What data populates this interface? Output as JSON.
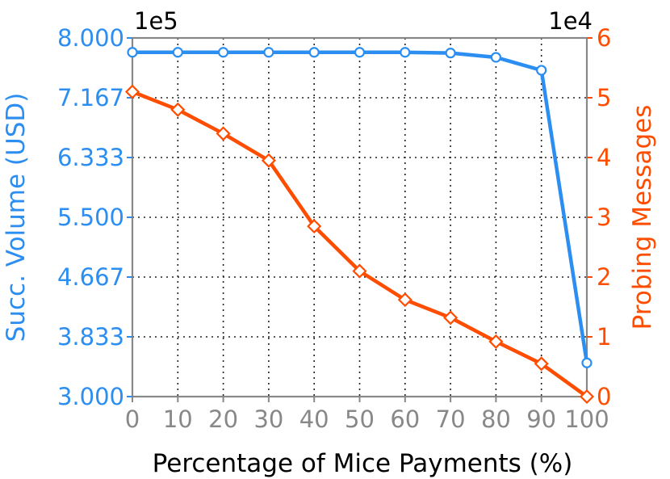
{
  "chart_data": {
    "type": "line",
    "xlabel": "Percentage of Mice Payments (%)",
    "x": [
      0,
      10,
      20,
      30,
      40,
      50,
      60,
      70,
      80,
      90,
      100
    ],
    "xlim": [
      0,
      100
    ],
    "xticks": [
      "0",
      "10",
      "20",
      "30",
      "40",
      "50",
      "60",
      "70",
      "80",
      "90",
      "100"
    ],
    "left_axis": {
      "label": "Succ. Volume (USD)",
      "multiplier": "1e5",
      "ylim": [
        3.0,
        8.0
      ],
      "ticks": [
        "3.000",
        "3.833",
        "4.667",
        "5.500",
        "6.333",
        "7.167",
        "8.000"
      ],
      "color": "#2b8ef0"
    },
    "right_axis": {
      "label": "Probing Messages",
      "multiplier": "1e4",
      "ylim": [
        0,
        6
      ],
      "ticks": [
        "0",
        "1",
        "2",
        "3",
        "4",
        "5",
        "6"
      ],
      "color": "#ff4d00"
    },
    "series": [
      {
        "axis": "left",
        "marker": "circle",
        "color": "#2b8ef0",
        "values": [
          7.8,
          7.8,
          7.8,
          7.8,
          7.8,
          7.8,
          7.8,
          7.79,
          7.73,
          7.55,
          3.47
        ]
      },
      {
        "axis": "right",
        "marker": "diamond",
        "color": "#ff4d00",
        "values": [
          5.1,
          4.8,
          4.4,
          3.95,
          2.85,
          2.1,
          1.62,
          1.32,
          0.92,
          0.55,
          0.0
        ]
      }
    ],
    "grid": true,
    "axis_tick_color": "#888888"
  }
}
